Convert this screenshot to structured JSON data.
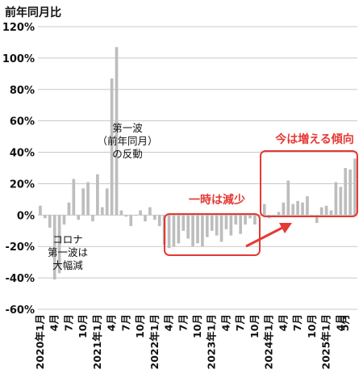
{
  "chart_data": {
    "type": "bar",
    "ylabel": "前年同月比",
    "ylim": [
      -60,
      120
    ],
    "yticks": [
      120,
      100,
      80,
      60,
      40,
      20,
      0,
      -20,
      -40,
      -60
    ],
    "ytick_labels": [
      "120%",
      "100%",
      "80%",
      "60%",
      "40%",
      "20%",
      "0%",
      "-20%",
      "-40%",
      "-60%"
    ],
    "grid": true,
    "bar_color": "#bdbdbd",
    "annotation_color": "#e53935",
    "x_labels": [
      {
        "i": 0,
        "text": "2020年1月"
      },
      {
        "i": 3,
        "text": "4月"
      },
      {
        "i": 6,
        "text": "7月"
      },
      {
        "i": 9,
        "text": "10月"
      },
      {
        "i": 12,
        "text": "2021年1月"
      },
      {
        "i": 15,
        "text": "4月"
      },
      {
        "i": 18,
        "text": "7月"
      },
      {
        "i": 21,
        "text": "10月"
      },
      {
        "i": 24,
        "text": "2022年1月"
      },
      {
        "i": 27,
        "text": "4月"
      },
      {
        "i": 30,
        "text": "7月"
      },
      {
        "i": 33,
        "text": "10月"
      },
      {
        "i": 36,
        "text": "2023年1月"
      },
      {
        "i": 39,
        "text": "4月"
      },
      {
        "i": 42,
        "text": "7月"
      },
      {
        "i": 45,
        "text": "10月"
      },
      {
        "i": 48,
        "text": "2024年1月"
      },
      {
        "i": 51,
        "text": "4月"
      },
      {
        "i": 54,
        "text": "7月"
      },
      {
        "i": 57,
        "text": "10月"
      },
      {
        "i": 60,
        "text": "2025年1月"
      },
      {
        "i": 63,
        "text": "4月"
      },
      {
        "i": 64,
        "text": "5月"
      }
    ],
    "values": [
      6,
      -2,
      -8,
      -41,
      -37,
      -6,
      8,
      23,
      -3,
      17,
      21,
      -4,
      26,
      5,
      17,
      87,
      107,
      3,
      -1,
      -7,
      0,
      3,
      -4,
      5,
      -3,
      -7,
      -19,
      -21,
      -20,
      -18,
      -10,
      -15,
      -20,
      -18,
      -20,
      -14,
      -10,
      -13,
      -17,
      -9,
      -13,
      -6,
      -12,
      -6,
      -2,
      -6,
      0,
      7,
      -2,
      0,
      2,
      8,
      22,
      7,
      9,
      8,
      12,
      0,
      -5,
      5,
      6,
      3,
      21,
      18,
      30,
      29,
      36
    ],
    "annotations": [
      {
        "lines": [
          "第一波",
          "（前年同月）",
          "の反動"
        ]
      },
      {
        "lines": [
          "コロナ",
          "第一波は",
          "大幅減"
        ]
      },
      {
        "lines": [
          "一時は減少"
        ]
      },
      {
        "lines": [
          "今は増える傾向"
        ]
      }
    ]
  }
}
